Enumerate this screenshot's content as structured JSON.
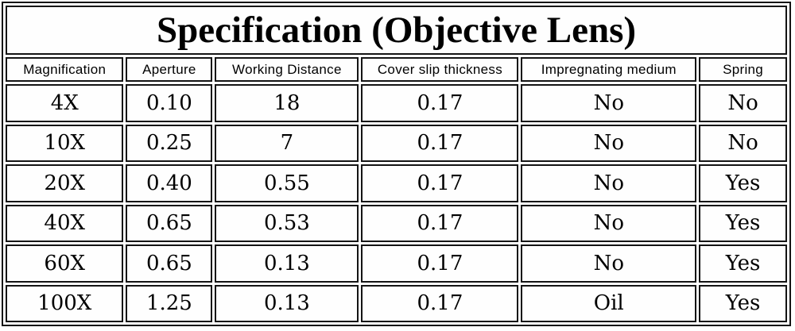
{
  "title": "Specification (Objective Lens)",
  "table": {
    "columns": [
      "Magnification",
      "Aperture",
      "Working Distance",
      "Cover slip thickness",
      "Impregnating medium",
      "Spring"
    ],
    "rows": [
      [
        "4X",
        "0.10",
        "18",
        "0.17",
        "No",
        "No"
      ],
      [
        "10X",
        "0.25",
        "7",
        "0.17",
        "No",
        "No"
      ],
      [
        "20X",
        "0.40",
        "0.55",
        "0.17",
        "No",
        "Yes"
      ],
      [
        "40X",
        "0.65",
        "0.53",
        "0.17",
        "No",
        "Yes"
      ],
      [
        "60X",
        "0.65",
        "0.13",
        "0.17",
        "No",
        "Yes"
      ],
      [
        "100X",
        "1.25",
        "0.13",
        "0.17",
        "Oil",
        "Yes"
      ]
    ]
  },
  "chart_data": {
    "type": "table",
    "title": "Specification (Objective Lens)",
    "columns": [
      "Magnification",
      "Aperture",
      "Working Distance",
      "Cover slip thickness",
      "Impregnating medium",
      "Spring"
    ],
    "rows": [
      [
        "4X",
        "0.10",
        "18",
        "0.17",
        "No",
        "No"
      ],
      [
        "10X",
        "0.25",
        "7",
        "0.17",
        "No",
        "No"
      ],
      [
        "20X",
        "0.40",
        "0.55",
        "0.17",
        "No",
        "Yes"
      ],
      [
        "40X",
        "0.65",
        "0.53",
        "0.17",
        "No",
        "Yes"
      ],
      [
        "60X",
        "0.65",
        "0.13",
        "0.17",
        "No",
        "Yes"
      ],
      [
        "100X",
        "1.25",
        "0.13",
        "0.17",
        "Oil",
        "Yes"
      ]
    ]
  },
  "colors": {
    "border": "#141414",
    "background": "#ffffff",
    "text": "#000000"
  }
}
